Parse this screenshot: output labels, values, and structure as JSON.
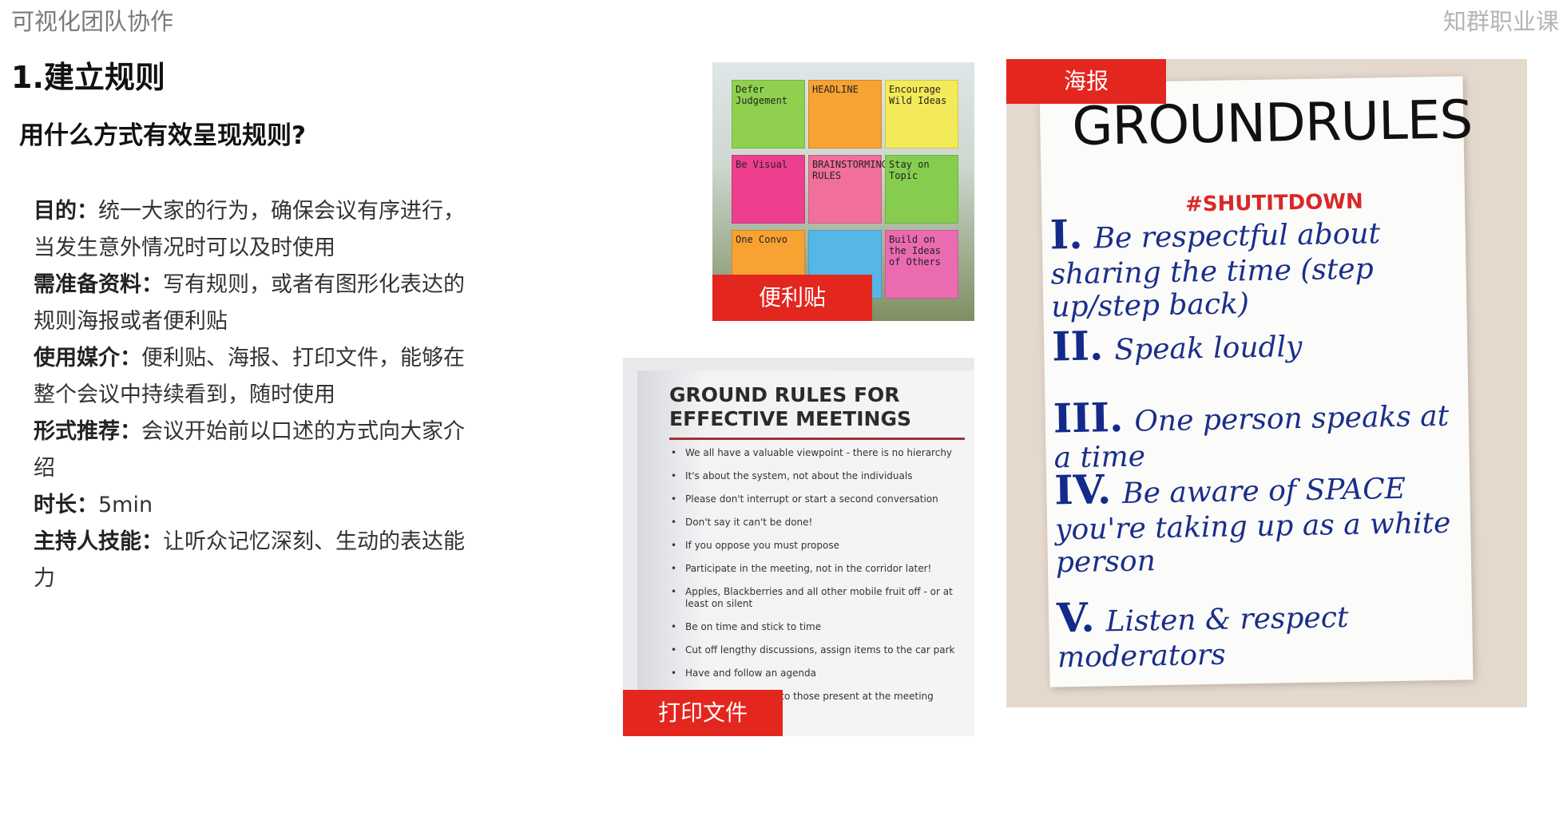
{
  "header": {
    "left": "可视化团队协作",
    "right": "知群职业课"
  },
  "title": "1.建立规则",
  "subtitle": "用什么方式有效呈现规则?",
  "items": [
    {
      "label": "目的：",
      "text": "统一大家的行为，确保会议有序进行，当发生意外情况时可以及时使用"
    },
    {
      "label": "需准备资料：",
      "text": "写有规则，或者有图形化表达的规则海报或者便利贴"
    },
    {
      "label": "使用媒介：",
      "text": "便利贴、海报、打印文件，能够在整个会议中持续看到，随时使用"
    },
    {
      "label": "形式推荐：",
      "text": "会议开始前以口述的方式向大家介绍"
    },
    {
      "label": "时长：",
      "text": "5min"
    },
    {
      "label": "主持人技能：",
      "text": "让听众记忆深刻、生动的表达能力"
    }
  ],
  "tags": {
    "sticky": "便利贴",
    "print": "打印文件",
    "poster": "海报"
  },
  "sticky_notes": [
    {
      "text": "Defer Judgement",
      "color": "#8fd14f"
    },
    {
      "text": "HEADLINE",
      "color": "#f7a233"
    },
    {
      "text": "Encourage Wild Ideas",
      "color": "#f3ea5a"
    },
    {
      "text": "Be Visual",
      "color": "#ee3f8f"
    },
    {
      "text": "BRAINSTORMING RULES",
      "color": "#f26f9b"
    },
    {
      "text": "Stay on Topic",
      "color": "#86cd4f"
    },
    {
      "text": "One Convo",
      "color": "#f7a233"
    },
    {
      "text": "",
      "color": "#57b6e8"
    },
    {
      "text": "Build on the Ideas of Others",
      "color": "#ea6bb0"
    }
  ],
  "print_doc": {
    "heading_1": "GROUND RULES FOR",
    "heading_2": "EFFECTIVE MEETINGS",
    "rules": [
      "We all have a valuable viewpoint - there is no hierarchy",
      "It's about the system, not about the individuals",
      "Please don't interrupt or start a second conversation",
      "Don't say it can't be done!",
      "If you oppose you must propose",
      "Participate in the meeting, not in the corridor later!",
      "Apples, Blackberries and all other mobile fruit off - or at least on silent",
      "Be on time and stick to time",
      "Cut off lengthy discussions, assign items to the car park",
      "Have and follow an agenda",
      "Assign actions only to those present at the meeting"
    ]
  },
  "poster": {
    "heading": "GROUNDRULES",
    "hashtag": "#SHUTITDOWN",
    "lines": [
      {
        "num": "I.",
        "text": "Be respectful about sharing the time (step up/step back)"
      },
      {
        "num": "II.",
        "text": "Speak loudly"
      },
      {
        "num": "III.",
        "text": "One person speaks at a time"
      },
      {
        "num": "IV.",
        "text": "Be aware of SPACE you're taking up as a white person"
      },
      {
        "num": "V.",
        "text": "Listen & respect moderators"
      }
    ]
  }
}
